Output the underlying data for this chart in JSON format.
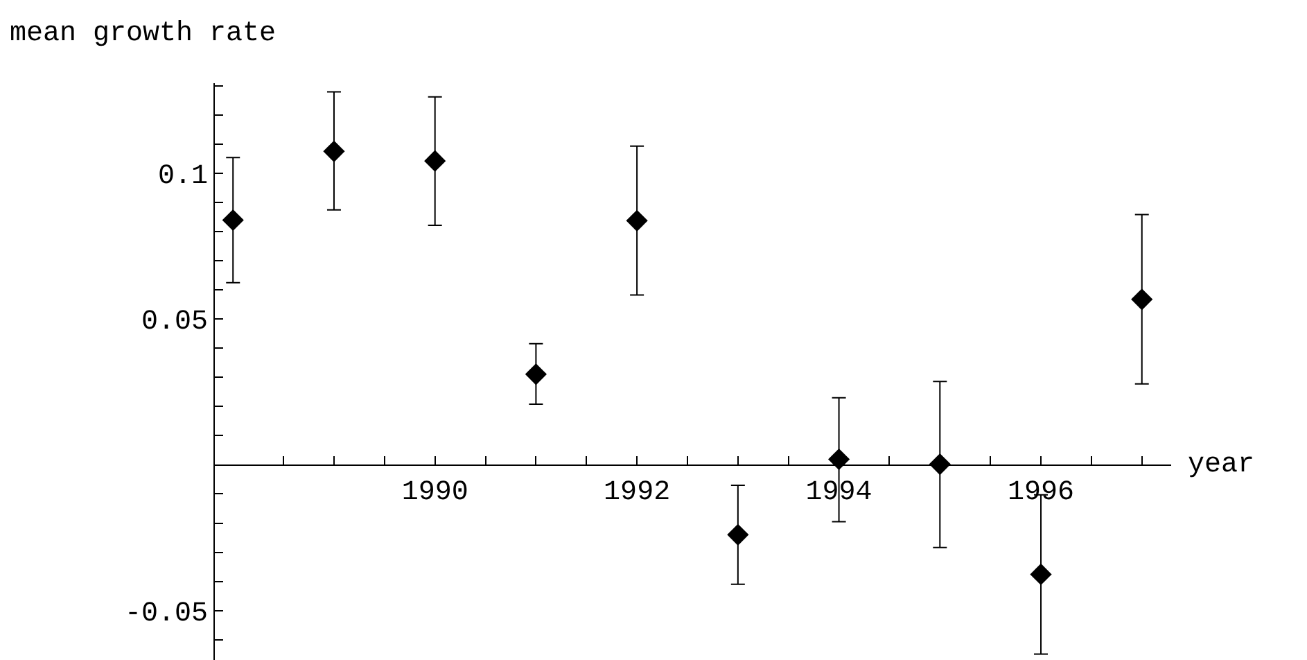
{
  "chart_data": {
    "type": "scatter",
    "xlabel": "year",
    "ylabel": "mean growth rate",
    "x": [
      1988,
      1989,
      1990,
      1991,
      1992,
      1993,
      1994,
      1995,
      1996,
      1997
    ],
    "series": [
      {
        "color": "#000000",
        "values": [
          0.084,
          0.1076,
          0.1043,
          0.0311,
          0.0838,
          -0.024,
          0.0019,
          0.0002,
          -0.0376,
          0.0568
        ],
        "errors": [
          [
            0.0625,
            0.1055
          ],
          [
            0.0875,
            0.128
          ],
          [
            0.0822,
            0.1263
          ],
          [
            0.0208,
            0.0416
          ],
          [
            0.0583,
            0.1094
          ],
          [
            -0.041,
            -0.007
          ],
          [
            -0.0195,
            0.023
          ],
          [
            -0.0284,
            0.0286
          ],
          [
            -0.065,
            -0.0103
          ],
          [
            0.0278,
            0.0859
          ]
        ]
      }
    ],
    "marker": "diamond",
    "xlim": [
      1987.82,
      1997.29
    ],
    "ylim": [
      -0.067,
      0.131
    ],
    "xticks": [
      {
        "value": 1988.5,
        "label": null
      },
      {
        "value": 1989,
        "label": null
      },
      {
        "value": 1989.5,
        "label": null
      },
      1990,
      {
        "value": 1990.5,
        "label": null
      },
      {
        "value": 1991,
        "label": null
      },
      {
        "value": 1991.5,
        "label": null
      },
      1992,
      {
        "value": 1992.5,
        "label": null
      },
      {
        "value": 1993,
        "label": null
      },
      {
        "value": 1993.5,
        "label": null
      },
      1994,
      {
        "value": 1994.5,
        "label": null
      },
      {
        "value": 1995,
        "label": null
      },
      {
        "value": 1995.5,
        "label": null
      },
      1996,
      {
        "value": 1996.5,
        "label": null
      },
      {
        "value": 1997,
        "label": null
      }
    ],
    "yticks": [
      {
        "value": -0.06,
        "label": null
      },
      -0.05,
      {
        "value": -0.04,
        "label": null
      },
      {
        "value": -0.03,
        "label": null
      },
      {
        "value": -0.02,
        "label": null
      },
      {
        "value": -0.01,
        "label": null
      },
      {
        "value": 0.01,
        "label": null
      },
      {
        "value": 0.02,
        "label": null
      },
      {
        "value": 0.03,
        "label": null
      },
      {
        "value": 0.04,
        "label": null
      },
      0.05,
      {
        "value": 0.06,
        "label": null
      },
      {
        "value": 0.07,
        "label": null
      },
      {
        "value": 0.08,
        "label": null
      },
      {
        "value": 0.09,
        "label": null
      },
      0.1,
      {
        "value": 0.11,
        "label": null
      },
      {
        "value": 0.12,
        "label": null
      },
      {
        "value": 0.13,
        "label": null
      }
    ]
  }
}
